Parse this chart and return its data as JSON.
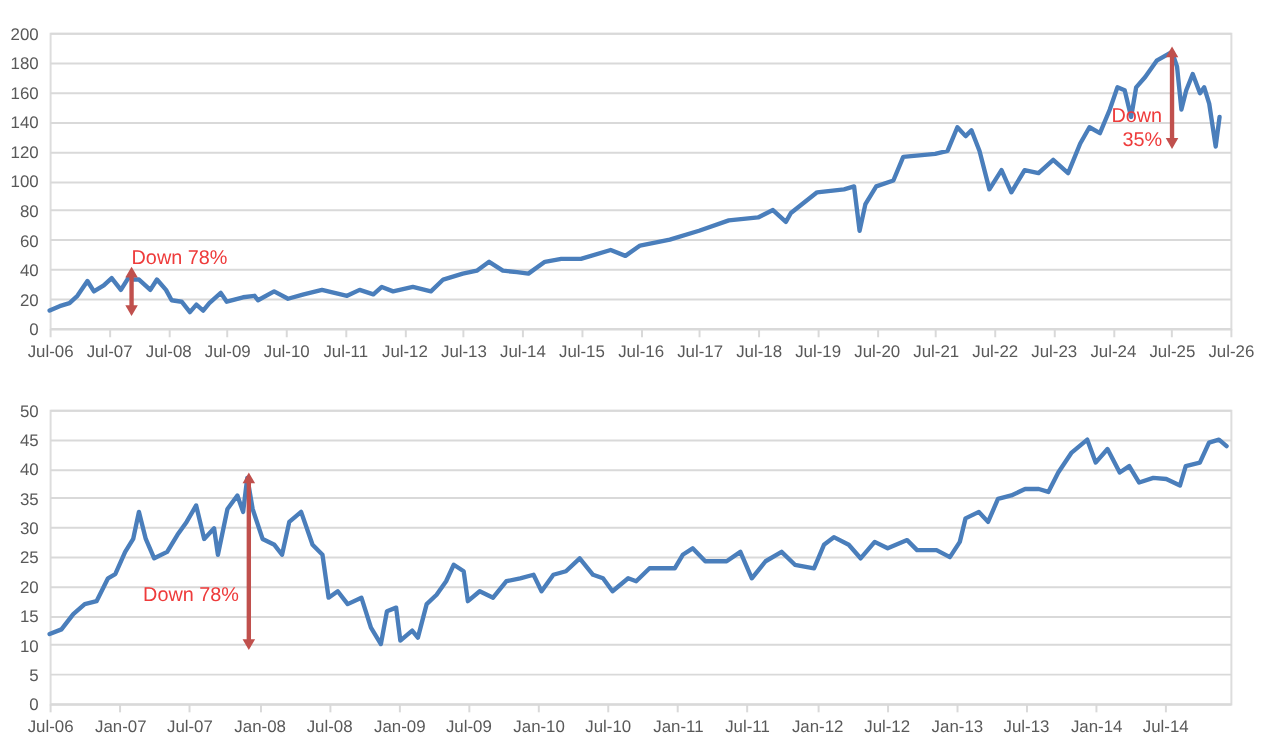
{
  "chart_data": [
    {
      "type": "line",
      "grid": "y",
      "xlim": [
        "2006-07-01",
        "2026-07-01"
      ],
      "ylim": [
        0,
        200
      ],
      "yticks": [
        0,
        20,
        40,
        60,
        80,
        100,
        120,
        140,
        160,
        180,
        200
      ],
      "xticks": [
        {
          "value": "2006-07-01",
          "label": "Jul-06"
        },
        {
          "value": "2007-07-01",
          "label": "Jul-07"
        },
        {
          "value": "2008-07-01",
          "label": "Jul-08"
        },
        {
          "value": "2009-07-01",
          "label": "Jul-09"
        },
        {
          "value": "2010-07-01",
          "label": "Jul-10"
        },
        {
          "value": "2011-07-01",
          "label": "Jul-11"
        },
        {
          "value": "2012-07-01",
          "label": "Jul-12"
        },
        {
          "value": "2013-07-01",
          "label": "Jul-13"
        },
        {
          "value": "2014-07-01",
          "label": "Jul-14"
        },
        {
          "value": "2015-07-01",
          "label": "Jul-15"
        },
        {
          "value": "2016-07-01",
          "label": "Jul-16"
        },
        {
          "value": "2017-07-01",
          "label": "Jul-17"
        },
        {
          "value": "2018-07-01",
          "label": "Jul-18"
        },
        {
          "value": "2019-07-01",
          "label": "Jul-19"
        },
        {
          "value": "2020-07-01",
          "label": "Jul-20"
        },
        {
          "value": "2021-07-01",
          "label": "Jul-21"
        },
        {
          "value": "2022-07-01",
          "label": "Jul-22"
        },
        {
          "value": "2023-07-01",
          "label": "Jul-23"
        },
        {
          "value": "2024-07-01",
          "label": "Jul-24"
        },
        {
          "value": "2025-07-01",
          "label": "Jul-25"
        },
        {
          "value": "2026-07-01",
          "label": "Jul-26"
        }
      ],
      "series": [
        {
          "color": "#4a7ebb",
          "x": [
            "2006-07-01",
            "2006-09-01",
            "2006-11-01",
            "2006-12-20",
            "2007-02-20",
            "2007-04-01",
            "2007-06-01",
            "2007-07-20",
            "2007-09-15",
            "2007-11-05",
            "2007-11-25",
            "2008-01-05",
            "2008-03-15",
            "2008-04-25",
            "2008-06-20",
            "2008-07-25",
            "2008-09-25",
            "2008-11-15",
            "2008-12-25",
            "2009-02-05",
            "2009-03-15",
            "2009-05-25",
            "2009-07-01",
            "2009-10-10",
            "2009-12-20",
            "2010-01-10",
            "2010-04-20",
            "2010-07-15",
            "2010-10-20",
            "2011-02-10",
            "2011-07-15",
            "2011-10-01",
            "2011-12-25",
            "2012-02-15",
            "2012-04-25",
            "2012-08-25",
            "2012-12-15",
            "2013-03-01",
            "2013-06-30",
            "2013-09-25",
            "2013-12-10",
            "2014-03-05",
            "2014-06-01",
            "2014-08-10",
            "2014-11-20",
            "2015-03-01",
            "2015-07-01",
            "2016-01-01",
            "2016-04-01",
            "2016-07-01",
            "2017-01-01",
            "2017-07-01",
            "2018-01-01",
            "2018-07-01",
            "2018-10-01",
            "2018-12-20",
            "2019-01-20",
            "2019-07-01",
            "2019-12-15",
            "2020-02-15",
            "2020-03-20",
            "2020-04-25",
            "2020-07-01",
            "2020-10-15",
            "2020-12-15",
            "2021-07-01",
            "2021-09-15",
            "2021-11-15",
            "2022-01-05",
            "2022-02-10",
            "2022-04-01",
            "2022-06-01",
            "2022-08-15",
            "2022-10-15",
            "2023-01-05",
            "2023-04-01",
            "2023-07-01",
            "2023-10-01",
            "2023-12-15",
            "2024-02-10",
            "2024-04-15",
            "2024-06-15",
            "2024-08-01",
            "2024-09-15",
            "2024-10-25",
            "2024-11-25",
            "2025-01-20",
            "2025-04-01",
            "2025-07-05",
            "2025-08-05",
            "2025-09-01",
            "2025-10-01",
            "2025-11-10",
            "2025-12-25",
            "2026-01-20",
            "2026-02-20",
            "2026-04-01",
            "2026-04-25"
          ],
          "values": [
            12,
            15,
            17,
            22,
            32,
            25,
            29,
            34,
            26,
            35,
            33,
            33,
            26,
            33,
            26,
            19,
            18,
            11,
            16,
            12,
            17,
            24,
            18,
            21,
            22,
            19,
            25,
            20,
            23,
            26,
            22,
            26,
            23,
            28,
            25,
            28,
            25,
            33,
            37,
            39,
            45,
            39,
            38,
            37,
            45,
            47,
            47,
            53,
            49,
            56,
            60,
            66,
            73,
            75,
            80,
            72,
            78,
            92,
            94,
            96,
            66,
            84,
            96,
            100,
            116,
            118,
            120,
            136,
            130,
            134,
            120,
            94,
            107,
            92,
            107,
            105,
            114,
            105,
            125,
            136,
            132,
            148,
            163,
            161,
            143,
            163,
            170,
            181,
            187,
            177,
            148,
            161,
            172,
            159,
            163,
            152,
            123,
            143
          ]
        },
        {
          "type": "line",
          "marker": "triangle",
          "color": "#c0504d",
          "x": [
            "2007-11-20",
            "2007-11-20"
          ],
          "values": [
            38,
            12
          ]
        },
        {
          "type": "line",
          "marker": "triangle",
          "color": "#c0504d",
          "x": [
            "2025-07-05",
            "2025-07-05"
          ],
          "values": [
            187,
            125
          ]
        }
      ],
      "annotations": [
        "Down 78%",
        "Down\n35%"
      ]
    },
    {
      "type": "line",
      "grid": "y",
      "xlim": [
        "2006-07-01",
        "2014-12-20"
      ],
      "ylim": [
        0,
        50
      ],
      "yticks": [
        0,
        5,
        10,
        15,
        20,
        25,
        30,
        35,
        40,
        45,
        50
      ],
      "xticks": [
        {
          "value": "2006-07-01",
          "label": "Jul-06"
        },
        {
          "value": "2007-01-01",
          "label": "Jan-07"
        },
        {
          "value": "2007-07-01",
          "label": "Jul-07"
        },
        {
          "value": "2008-01-01",
          "label": "Jan-08"
        },
        {
          "value": "2008-07-01",
          "label": "Jul-08"
        },
        {
          "value": "2009-01-01",
          "label": "Jan-09"
        },
        {
          "value": "2009-07-01",
          "label": "Jul-09"
        },
        {
          "value": "2010-01-01",
          "label": "Jan-10"
        },
        {
          "value": "2010-07-01",
          "label": "Jul-10"
        },
        {
          "value": "2011-01-01",
          "label": "Jan-11"
        },
        {
          "value": "2011-07-01",
          "label": "Jul-11"
        },
        {
          "value": "2012-01-01",
          "label": "Jan-12"
        },
        {
          "value": "2012-07-01",
          "label": "Jul-12"
        },
        {
          "value": "2013-01-01",
          "label": "Jan-13"
        },
        {
          "value": "2013-07-01",
          "label": "Jul-13"
        },
        {
          "value": "2014-01-01",
          "label": "Jan-14"
        },
        {
          "value": "2014-07-01",
          "label": "Jul-14"
        }
      ],
      "series": [
        {
          "color": "#4a7ebb",
          "x": [
            "2006-07-01",
            "2006-08-01",
            "2006-09-01",
            "2006-10-01",
            "2006-11-01",
            "2006-12-01",
            "2006-12-20",
            "2007-01-15",
            "2007-02-05",
            "2007-02-20",
            "2007-03-10",
            "2007-04-01",
            "2007-05-05",
            "2007-06-01",
            "2007-06-25",
            "2007-07-20",
            "2007-08-10",
            "2007-09-05",
            "2007-09-15",
            "2007-10-10",
            "2007-11-05",
            "2007-11-20",
            "2007-12-01",
            "2007-12-15",
            "2008-01-10",
            "2008-02-10",
            "2008-03-01",
            "2008-03-20",
            "2008-04-20",
            "2008-05-20",
            "2008-06-15",
            "2008-07-01",
            "2008-07-25",
            "2008-08-20",
            "2008-09-25",
            "2008-10-20",
            "2008-11-15",
            "2008-12-01",
            "2008-12-25",
            "2009-01-05",
            "2009-02-05",
            "2009-02-20",
            "2009-03-15",
            "2009-04-10",
            "2009-05-05",
            "2009-05-25",
            "2009-06-20",
            "2009-07-01",
            "2009-08-01",
            "2009-09-05",
            "2009-10-10",
            "2009-11-15",
            "2009-12-20",
            "2010-01-10",
            "2010-02-10",
            "2010-03-15",
            "2010-04-20",
            "2010-05-25",
            "2010-06-20",
            "2010-07-15",
            "2010-08-25",
            "2010-09-15",
            "2010-10-20",
            "2010-12-25",
            "2011-01-15",
            "2011-02-10",
            "2011-03-15",
            "2011-05-10",
            "2011-06-15",
            "2011-07-15",
            "2011-08-20",
            "2011-10-01",
            "2011-11-05",
            "2011-12-25",
            "2012-01-20",
            "2012-02-15",
            "2012-03-25",
            "2012-04-25",
            "2012-06-01",
            "2012-07-05",
            "2012-08-25",
            "2012-09-20",
            "2012-11-10",
            "2012-12-15",
            "2013-01-10",
            "2013-01-25",
            "2013-03-01",
            "2013-03-25",
            "2013-04-20",
            "2013-05-25",
            "2013-06-30",
            "2013-08-05",
            "2013-08-30",
            "2013-09-25",
            "2013-10-30",
            "2013-12-10",
            "2014-01-01",
            "2014-02-01",
            "2014-03-05",
            "2014-03-30",
            "2014-04-25",
            "2014-06-01",
            "2014-07-05",
            "2014-08-10",
            "2014-08-25",
            "2014-10-01",
            "2014-10-25",
            "2014-11-20",
            "2014-12-10"
          ],
          "values": [
            11.8,
            12.6,
            15.2,
            16.9,
            17.4,
            21.3,
            22,
            25.8,
            28,
            32.6,
            28,
            24.7,
            25.8,
            28.7,
            30.9,
            33.7,
            28,
            29.8,
            25.3,
            33.1,
            35.4,
            32.6,
            38.4,
            33.1,
            28,
            27,
            25.3,
            30.9,
            32.6,
            27,
            25.3,
            18,
            19.1,
            16.9,
            18,
            12.9,
            10.1,
            15.7,
            16.3,
            10.7,
            12.4,
            11.2,
            16.9,
            18.5,
            20.8,
            23.6,
            22.5,
            17.4,
            19.1,
            18,
            20.8,
            21.3,
            21.9,
            19.1,
            21.9,
            22.5,
            24.7,
            21.9,
            21.3,
            19.1,
            21.3,
            20.8,
            23,
            23,
            25.3,
            26.4,
            24.2,
            24.2,
            25.8,
            21.3,
            24.2,
            25.8,
            23.6,
            23,
            27,
            28.3,
            27,
            24.7,
            27.5,
            26.4,
            27.8,
            26.1,
            26.1,
            24.9,
            27.5,
            31.5,
            32.6,
            30.9,
            34.8,
            35.4,
            36.5,
            36.5,
            36,
            39.3,
            42.7,
            44.9,
            41,
            43.3,
            39.3,
            40.4,
            37.6,
            38.4,
            38.2,
            37.1,
            40.4,
            41,
            44.4,
            44.9,
            43.8
          ]
        },
        {
          "type": "line",
          "marker": "triangle",
          "color": "#c0504d",
          "x": [
            "2007-12-05",
            "2007-12-05"
          ],
          "values": [
            38.4,
            10
          ]
        }
      ],
      "annotations": [
        "Down 78%"
      ]
    }
  ]
}
